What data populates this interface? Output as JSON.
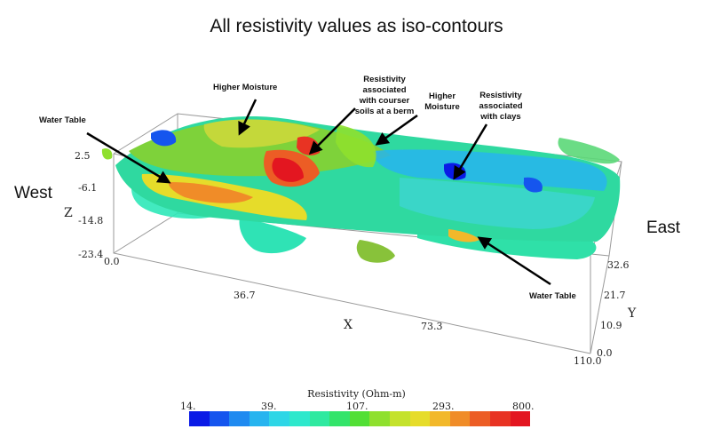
{
  "title": "All resistivity values as iso-contours",
  "sides": {
    "west": "West",
    "east": "East"
  },
  "annotations": {
    "higher_moisture_1": "Higher Moisture",
    "water_table_1": "Water Table",
    "berm_line1": "Resistivity",
    "berm_line2": "associated",
    "berm_line3": "with courser",
    "berm_line4": "soils at a berm",
    "higher_moisture_2_line1": "Higher",
    "higher_moisture_2_line2": "Moisture",
    "clays_line1": "Resistivity",
    "clays_line2": "associated",
    "clays_line3": "with clays",
    "water_table_2": "Water Table"
  },
  "axes": {
    "z_label": "Z",
    "z_ticks": [
      "2.5",
      "-6.1",
      "-14.8",
      "-23.4"
    ],
    "x_label": "X",
    "x_ticks": [
      "0.0",
      "36.7",
      "73.3",
      "110.0"
    ],
    "y_label": "Y",
    "y_ticks": [
      "32.6",
      "21.7",
      "10.9",
      "0.0"
    ]
  },
  "colorbar": {
    "title": "Resistivity (Ohm-m)",
    "ticks": [
      "14.",
      "39.",
      "107.",
      "293.",
      "800."
    ],
    "colors": [
      "#0a1ae6",
      "#1555ee",
      "#1f8af0",
      "#27b4ef",
      "#2ed6e6",
      "#2ee8cc",
      "#2fe9a0",
      "#33e46a",
      "#52df35",
      "#8fe02e",
      "#c4e22c",
      "#e6dc2a",
      "#f2b82a",
      "#f08c28",
      "#ec5d25",
      "#e83323",
      "#e31620"
    ]
  }
}
